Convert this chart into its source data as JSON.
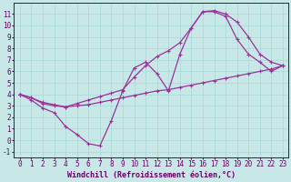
{
  "background_color": "#c8e8e8",
  "grid_color": "#a8d8d8",
  "line_color": "#993399",
  "marker": "+",
  "xlabel": "Windchill (Refroidissement éolien,°C)",
  "xlim": [
    -0.5,
    23.5
  ],
  "ylim": [
    -1.5,
    12
  ],
  "yticks": [
    -1,
    0,
    1,
    2,
    3,
    4,
    5,
    6,
    7,
    8,
    9,
    10,
    11
  ],
  "xticks": [
    0,
    1,
    2,
    3,
    4,
    5,
    6,
    7,
    8,
    9,
    10,
    11,
    12,
    13,
    14,
    15,
    16,
    17,
    18,
    19,
    20,
    21,
    22,
    23
  ],
  "curve1_x": [
    0,
    1,
    2,
    3,
    4,
    5,
    6,
    7,
    8,
    9,
    10,
    11,
    12,
    13,
    14,
    15,
    16,
    17,
    18,
    19,
    20,
    21,
    22,
    23
  ],
  "curve1_y": [
    4.0,
    3.7,
    3.2,
    3.0,
    2.9,
    3.2,
    3.5,
    3.8,
    4.1,
    4.4,
    5.5,
    6.5,
    7.3,
    7.8,
    8.5,
    9.8,
    11.2,
    11.3,
    11.0,
    10.3,
    9.0,
    7.5,
    6.8,
    6.5
  ],
  "curve2_x": [
    0,
    1,
    2,
    3,
    4,
    5,
    6,
    7,
    8,
    9,
    10,
    11,
    12,
    13,
    14,
    15,
    16,
    17,
    18,
    19,
    20,
    21,
    22,
    23
  ],
  "curve2_y": [
    4.0,
    3.7,
    3.3,
    3.1,
    2.9,
    3.0,
    3.1,
    3.3,
    3.5,
    3.7,
    3.9,
    4.1,
    4.3,
    4.4,
    4.6,
    4.8,
    5.0,
    5.2,
    5.4,
    5.6,
    5.8,
    6.0,
    6.2,
    6.5
  ],
  "curve3_x": [
    0,
    1,
    2,
    3,
    4,
    5,
    6,
    7,
    8,
    9,
    10,
    11,
    12,
    13,
    14,
    15,
    16,
    17,
    18,
    19,
    20,
    21,
    22,
    23
  ],
  "curve3_y": [
    4.0,
    3.5,
    2.8,
    2.4,
    1.2,
    0.5,
    -0.3,
    -0.5,
    1.7,
    4.3,
    6.3,
    6.8,
    5.8,
    4.3,
    7.5,
    9.8,
    11.2,
    11.2,
    10.8,
    8.8,
    7.5,
    6.8,
    6.0,
    6.5
  ],
  "xlabel_fontsize": 6,
  "tick_fontsize": 5.5,
  "linewidth": 0.9,
  "markersize": 3.5,
  "fig_width": 3.2,
  "fig_height": 2.0
}
